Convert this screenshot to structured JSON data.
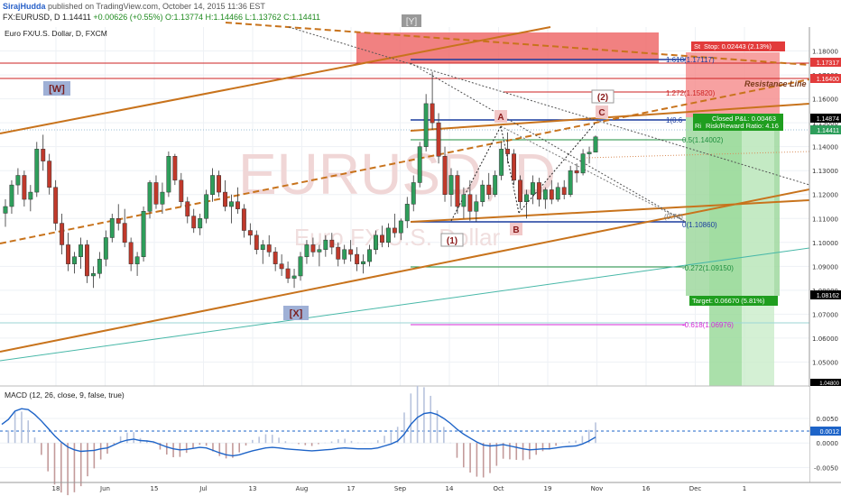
{
  "header": {
    "user": "SirajHudda",
    "published": "published on TradingView.com, October 14, 2015 11:36 EST",
    "symbol_line": "FX:EURUSD, D",
    "last": "1.14411",
    "change": "+0.00626 (+0.55%)",
    "ohlc": "O:1.13774 H:1.14466 L:1.13762 C:1.14411"
  },
  "chart_title": "Euro FX/U.S. Dollar, D, FXCM",
  "watermark": {
    "symbol": "EURUSD, D",
    "name": "Euro FX/U.S. Dollar"
  },
  "colors": {
    "up": "#2e9e5b",
    "down": "#c0392b",
    "channel": "#c8731c",
    "macd": "#1e64c8",
    "stop": "#e23b3b",
    "target": "#1f9e1f",
    "fib": "#1f8f3f",
    "resistance": "#c8731c"
  },
  "chart_data": {
    "type": "candlestick",
    "symbol": "EURUSD",
    "timeframe": "D",
    "ylim": [
      1.04,
      1.19
    ],
    "price_ticks": [
      "1.18000",
      "1.17000",
      "1.16000",
      "1.15000",
      "1.14000",
      "1.13000",
      "1.12000",
      "1.11000",
      "1.10000",
      "1.09000",
      "1.08000",
      "1.07000",
      "1.06000",
      "1.05000"
    ],
    "x_ticks": [
      "18",
      "Jun",
      "15",
      "Jul",
      "13",
      "Aug",
      "17",
      "Sep",
      "14",
      "Oct",
      "19",
      "Nov",
      "16",
      "Dec",
      "1"
    ],
    "price_labels": {
      "stop_level": "1.17317",
      "resistance_level": "1.16400",
      "current_high": "1.14874",
      "last_price": "1.14411",
      "support_level": "1.08162",
      "bottom_level": "1.04800"
    },
    "ohlc": [
      [
        1.1122,
        1.118,
        1.1065,
        1.115
      ],
      [
        1.115,
        1.126,
        1.112,
        1.124
      ],
      [
        1.124,
        1.131,
        1.12,
        1.128
      ],
      [
        1.128,
        1.13,
        1.115,
        1.118
      ],
      [
        1.118,
        1.124,
        1.113,
        1.121
      ],
      [
        1.121,
        1.142,
        1.119,
        1.139
      ],
      [
        1.139,
        1.145,
        1.13,
        1.134
      ],
      [
        1.134,
        1.137,
        1.12,
        1.123
      ],
      [
        1.123,
        1.126,
        1.105,
        1.108
      ],
      [
        1.108,
        1.112,
        1.095,
        1.099
      ],
      [
        1.099,
        1.104,
        1.088,
        1.091
      ],
      [
        1.091,
        1.096,
        1.087,
        1.094
      ],
      [
        1.094,
        1.102,
        1.089,
        1.099
      ],
      [
        1.099,
        1.101,
        1.083,
        1.086
      ],
      [
        1.086,
        1.09,
        1.081,
        1.087
      ],
      [
        1.087,
        1.096,
        1.085,
        1.093
      ],
      [
        1.093,
        1.105,
        1.09,
        1.102
      ],
      [
        1.102,
        1.112,
        1.1,
        1.11
      ],
      [
        1.11,
        1.116,
        1.105,
        1.108
      ],
      [
        1.108,
        1.114,
        1.098,
        1.1
      ],
      [
        1.1,
        1.102,
        1.088,
        1.091
      ],
      [
        1.091,
        1.096,
        1.086,
        1.094
      ],
      [
        1.094,
        1.115,
        1.092,
        1.113
      ],
      [
        1.113,
        1.126,
        1.11,
        1.125
      ],
      [
        1.125,
        1.128,
        1.114,
        1.116
      ],
      [
        1.116,
        1.125,
        1.112,
        1.121
      ],
      [
        1.121,
        1.138,
        1.119,
        1.136
      ],
      [
        1.136,
        1.137,
        1.124,
        1.126
      ],
      [
        1.126,
        1.129,
        1.115,
        1.117
      ],
      [
        1.117,
        1.119,
        1.108,
        1.111
      ],
      [
        1.111,
        1.114,
        1.104,
        1.106
      ],
      [
        1.106,
        1.112,
        1.103,
        1.11
      ],
      [
        1.11,
        1.122,
        1.108,
        1.12
      ],
      [
        1.12,
        1.131,
        1.117,
        1.128
      ],
      [
        1.128,
        1.13,
        1.119,
        1.121
      ],
      [
        1.121,
        1.126,
        1.113,
        1.115
      ],
      [
        1.115,
        1.12,
        1.108,
        1.117
      ],
      [
        1.117,
        1.123,
        1.112,
        1.114
      ],
      [
        1.114,
        1.116,
        1.102,
        1.105
      ],
      [
        1.105,
        1.108,
        1.099,
        1.103
      ],
      [
        1.103,
        1.105,
        1.095,
        1.097
      ],
      [
        1.097,
        1.101,
        1.091,
        1.099
      ],
      [
        1.099,
        1.103,
        1.094,
        1.096
      ],
      [
        1.096,
        1.098,
        1.088,
        1.091
      ],
      [
        1.091,
        1.095,
        1.086,
        1.089
      ],
      [
        1.089,
        1.092,
        1.083,
        1.085
      ],
      [
        1.085,
        1.089,
        1.081,
        1.086
      ],
      [
        1.086,
        1.096,
        1.084,
        1.094
      ],
      [
        1.094,
        1.101,
        1.091,
        1.099
      ],
      [
        1.099,
        1.102,
        1.094,
        1.096
      ],
      [
        1.096,
        1.099,
        1.09,
        1.097
      ],
      [
        1.097,
        1.103,
        1.094,
        1.101
      ],
      [
        1.101,
        1.104,
        1.095,
        1.098
      ],
      [
        1.098,
        1.1,
        1.09,
        1.093
      ],
      [
        1.093,
        1.099,
        1.091,
        1.097
      ],
      [
        1.097,
        1.101,
        1.092,
        1.095
      ],
      [
        1.095,
        1.098,
        1.088,
        1.091
      ],
      [
        1.091,
        1.095,
        1.087,
        1.092
      ],
      [
        1.092,
        1.099,
        1.09,
        1.097
      ],
      [
        1.097,
        1.105,
        1.095,
        1.103
      ],
      [
        1.103,
        1.107,
        1.098,
        1.1
      ],
      [
        1.1,
        1.108,
        1.098,
        1.106
      ],
      [
        1.106,
        1.112,
        1.102,
        1.104
      ],
      [
        1.104,
        1.11,
        1.101,
        1.109
      ],
      [
        1.109,
        1.119,
        1.106,
        1.116
      ],
      [
        1.116,
        1.128,
        1.113,
        1.125
      ],
      [
        1.125,
        1.142,
        1.123,
        1.14
      ],
      [
        1.14,
        1.162,
        1.138,
        1.158
      ],
      [
        1.158,
        1.1713,
        1.147,
        1.15
      ],
      [
        1.15,
        1.154,
        1.133,
        1.136
      ],
      [
        1.136,
        1.14,
        1.117,
        1.12
      ],
      [
        1.12,
        1.131,
        1.115,
        1.128
      ],
      [
        1.128,
        1.13,
        1.112,
        1.115
      ],
      [
        1.115,
        1.123,
        1.11,
        1.12
      ],
      [
        1.12,
        1.126,
        1.109,
        1.113
      ],
      [
        1.113,
        1.12,
        1.1086,
        1.117
      ],
      [
        1.117,
        1.126,
        1.115,
        1.124
      ],
      [
        1.124,
        1.129,
        1.118,
        1.12
      ],
      [
        1.12,
        1.13,
        1.119,
        1.128
      ],
      [
        1.128,
        1.142,
        1.126,
        1.139
      ],
      [
        1.139,
        1.146,
        1.133,
        1.137
      ],
      [
        1.137,
        1.139,
        1.124,
        1.126
      ],
      [
        1.126,
        1.128,
        1.114,
        1.117
      ],
      [
        1.117,
        1.122,
        1.11,
        1.12
      ],
      [
        1.12,
        1.128,
        1.116,
        1.125
      ],
      [
        1.125,
        1.127,
        1.115,
        1.118
      ],
      [
        1.118,
        1.123,
        1.114,
        1.122
      ],
      [
        1.122,
        1.126,
        1.116,
        1.118
      ],
      [
        1.118,
        1.125,
        1.117,
        1.123
      ],
      [
        1.123,
        1.126,
        1.118,
        1.12
      ],
      [
        1.12,
        1.132,
        1.119,
        1.13
      ],
      [
        1.13,
        1.133,
        1.125,
        1.129
      ],
      [
        1.129,
        1.139,
        1.128,
        1.137
      ],
      [
        1.137,
        1.14,
        1.133,
        1.1377
      ],
      [
        1.1377,
        1.1447,
        1.1376,
        1.1441
      ]
    ]
  },
  "annotations": {
    "wave_w": "[W]",
    "wave_x": "[X]",
    "wave_top": "[Y]",
    "wave_1": "(1)",
    "wave_2": "(2)",
    "wave_a": "A",
    "wave_b": "B",
    "wave_c": "C",
    "resistance": "Resistance Line",
    "fib_1618": "1.618(1.17117)",
    "fib_1272": "1.272(1.15820)",
    "fib_0618_top": "1(0.6",
    "fib_05": "0.5(1.14002)",
    "fib_0": "0(1.10860)",
    "fib_0_side": "(0.74)",
    "fib_m0272": "-0.272(1.09150)",
    "fib_m0618": "-0.618(1.06976)",
    "stop_label": "Stop: 0.02443 (2.13%)",
    "stop_prefix": "St",
    "pnl_label": "Closed P&L: 0.00463",
    "rr_label": "Risk/Reward Ratio: 4.16",
    "rr_prefix": "Ri",
    "target_label": "Target: 0.06670 (5.81%)"
  },
  "macd": {
    "label": "MACD (12, 26, close, 9, false, true)",
    "ticks": [
      "0.0050",
      "0.0000",
      "-0.0050"
    ],
    "current": "0.0012",
    "ylim": [
      -0.0075,
      0.0085
    ],
    "line": [
      0.0038,
      0.0048,
      0.0065,
      0.007,
      0.0068,
      0.0058,
      0.0045,
      0.003,
      0.0015,
      0.0002,
      -0.0008,
      -0.0014,
      -0.0017,
      -0.0016,
      -0.0015,
      -0.0012,
      -0.001,
      -0.0004,
      0.0002,
      0.0006,
      0.0008,
      0.0005,
      0.0004,
      0.0002,
      -0.0003,
      -0.0008,
      -0.0012,
      -0.0014,
      -0.0013,
      -0.0011,
      -0.0009,
      -0.001,
      -0.0015,
      -0.002,
      -0.0024,
      -0.0026,
      -0.0024,
      -0.002,
      -0.0016,
      -0.0013,
      -0.001,
      -0.0009,
      -0.001,
      -0.0012,
      -0.0013,
      -0.0014,
      -0.0015,
      -0.0016,
      -0.0015,
      -0.0014,
      -0.0013,
      -0.0011,
      -0.001,
      -0.0011,
      -0.0012,
      -0.0012,
      -0.0012,
      -0.001,
      -0.0006,
      -0.0002,
      0.0004,
      0.0018,
      0.0038,
      0.0052,
      0.006,
      0.0062,
      0.0058,
      0.005,
      0.004,
      0.0028,
      0.0018,
      0.001,
      0.0002,
      -0.0004,
      -0.0006,
      -0.0005,
      -0.0003,
      -0.0006,
      -0.0009,
      -0.0012,
      -0.0014,
      -0.0013,
      -0.0012,
      -0.0012,
      -0.001,
      -0.0008,
      -0.0007,
      -0.0006,
      -0.0002,
      0.0004,
      0.0012
    ]
  }
}
